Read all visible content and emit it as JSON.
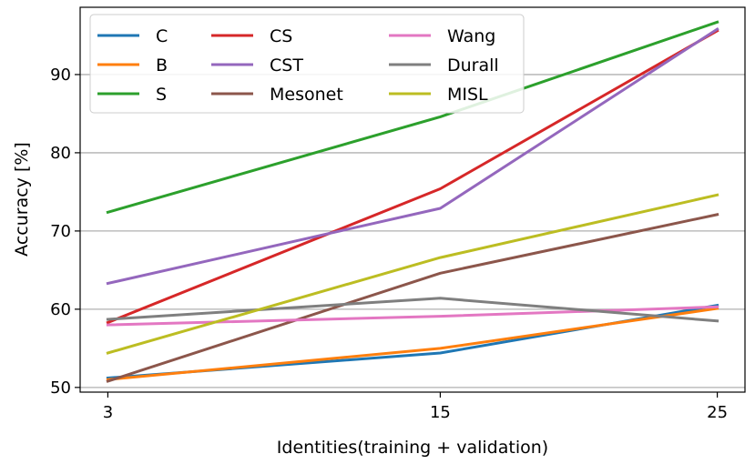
{
  "chart_data": {
    "type": "line",
    "title": "",
    "xlabel": "Identities(training + validation)",
    "ylabel": "Accuracy [%]",
    "categories": [
      "3",
      "15",
      "25"
    ],
    "x": [
      3,
      15,
      25
    ],
    "xlim": [
      2,
      26
    ],
    "ylim": [
      49.4,
      98.6
    ],
    "yticks": [
      50,
      60,
      70,
      80,
      90
    ],
    "grid": "y",
    "legend_position": "top-left",
    "series": [
      {
        "name": "C",
        "color": "#1f77b4",
        "values": [
          51.2,
          54.4,
          60.5
        ]
      },
      {
        "name": "B",
        "color": "#ff7f0e",
        "values": [
          51.0,
          55.0,
          60.1
        ]
      },
      {
        "name": "S",
        "color": "#2ca02c",
        "values": [
          72.4,
          84.6,
          96.7
        ]
      },
      {
        "name": "CS",
        "color": "#d62728",
        "values": [
          58.3,
          75.4,
          95.6
        ]
      },
      {
        "name": "CST",
        "color": "#9467bd",
        "values": [
          63.3,
          72.9,
          95.8
        ]
      },
      {
        "name": "Mesonet",
        "color": "#8c564b",
        "values": [
          50.8,
          64.6,
          72.1
        ]
      },
      {
        "name": "Wang",
        "color": "#e377c2",
        "values": [
          58.0,
          59.1,
          60.3
        ]
      },
      {
        "name": "Durall",
        "color": "#7f7f7f",
        "values": [
          58.7,
          61.4,
          58.5
        ]
      },
      {
        "name": "MISL",
        "color": "#bcbd22",
        "values": [
          54.4,
          66.6,
          74.6
        ]
      }
    ]
  }
}
